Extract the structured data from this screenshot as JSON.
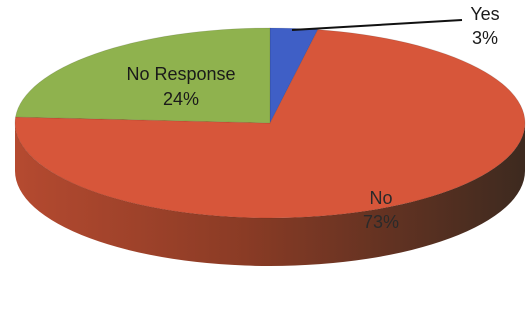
{
  "chart_data": {
    "type": "pie",
    "style": "3d",
    "slices": [
      {
        "name": "No",
        "value": 73,
        "label": "73%",
        "color": "#d7563a"
      },
      {
        "name": "No Response",
        "value": 24,
        "label": "24%",
        "color": "#8fb24e"
      },
      {
        "name": "Yes",
        "value": 3,
        "label": "3%",
        "color": "#3f5fc6"
      }
    ],
    "side_color": "#7a3524"
  }
}
